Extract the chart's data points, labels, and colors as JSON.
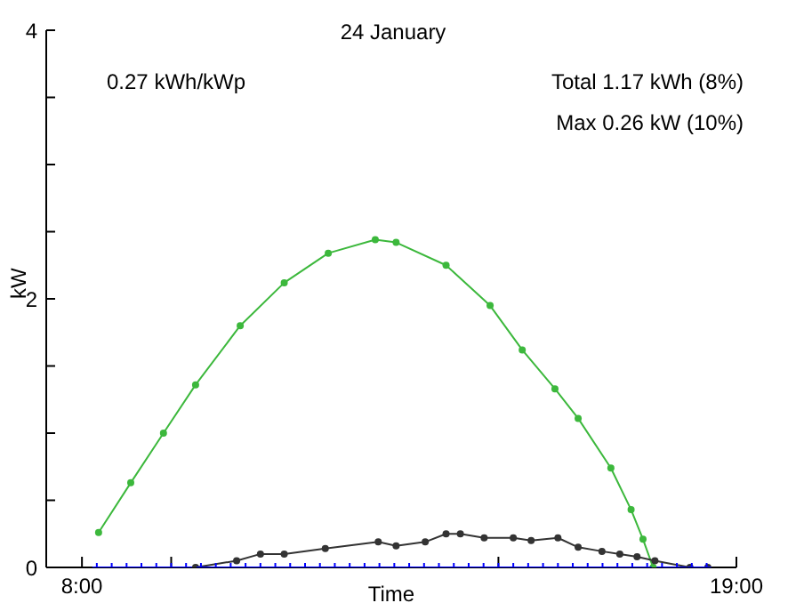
{
  "chart_data": {
    "type": "line",
    "title": "24 January",
    "xlabel": "Time",
    "ylabel": "kW",
    "annotations": [
      "0.27 kWh/kWp",
      "Total 1.17 kWh (8%)",
      "Max 0.26 kW (10%)"
    ],
    "xlim": [
      7.4,
      19
    ],
    "xticks": [
      {
        "value": 8,
        "label": "8:00"
      },
      {
        "value": 9.5,
        "label": null
      },
      {
        "value": 15,
        "label": null
      },
      {
        "value": 19,
        "label": "19:00"
      }
    ],
    "ylim": [
      0,
      4
    ],
    "yticks": [
      0,
      {
        "value": 0.5,
        "label": null
      },
      {
        "value": 1,
        "label": null
      },
      {
        "value": 1.5,
        "label": null
      },
      2,
      {
        "value": 2.5,
        "label": null
      },
      {
        "value": 3,
        "label": null
      },
      {
        "value": 3.5,
        "label": null
      },
      4
    ],
    "grid": false,
    "line_style": "solid",
    "series": [
      {
        "color": "#3cb83c",
        "marker": "circle",
        "x": [
          8.28,
          8.82,
          9.37,
          9.91,
          10.66,
          11.4,
          12.14,
          12.93,
          13.28,
          14.12,
          14.86,
          15.4,
          15.95,
          16.34,
          16.89,
          17.23,
          17.43,
          17.6
        ],
        "values": [
          0.26,
          0.63,
          1.0,
          1.36,
          1.8,
          2.12,
          2.34,
          2.44,
          2.42,
          2.25,
          1.95,
          1.62,
          1.33,
          1.11,
          0.74,
          0.43,
          0.21,
          0
        ]
      },
      {
        "color": "#333333",
        "marker": "circle",
        "x": [
          9.91,
          10.6,
          11.0,
          11.4,
          12.09,
          12.98,
          13.28,
          13.77,
          14.12,
          14.36,
          14.76,
          15.25,
          15.55,
          16.0,
          16.34,
          16.74,
          17.04,
          17.33,
          17.63,
          18.22,
          18.52
        ],
        "values": [
          0,
          0.05,
          0.1,
          0.1,
          0.14,
          0.19,
          0.16,
          0.19,
          0.25,
          0.25,
          0.22,
          0.22,
          0.2,
          0.22,
          0.15,
          0.12,
          0.1,
          0.08,
          0.05,
          0,
          0
        ]
      },
      {
        "color": "#0000ff",
        "marker": "cross",
        "x": [
          8.25,
          8.5,
          8.75,
          9,
          9.25,
          9.5,
          9.75,
          10,
          10.25,
          10.5,
          10.75,
          11,
          11.25,
          11.5,
          11.75,
          12,
          12.25,
          12.5,
          12.75,
          13,
          13.25,
          13.5,
          13.75,
          14,
          14.25,
          14.5,
          14.75,
          15,
          15.25,
          15.5,
          15.75,
          16,
          16.25,
          16.5,
          16.75,
          17,
          17.25,
          17.5,
          17.75,
          18,
          18.25,
          18.5
        ],
        "values": [
          0,
          0,
          0,
          0,
          0,
          0,
          0,
          0,
          0,
          0,
          0,
          0,
          0,
          0,
          0,
          0,
          0,
          0,
          0,
          0,
          0,
          0,
          0,
          0,
          0,
          0,
          0,
          0,
          0,
          0,
          0,
          0,
          0,
          0,
          0,
          0,
          0,
          0,
          0,
          0,
          0,
          0
        ]
      }
    ]
  }
}
